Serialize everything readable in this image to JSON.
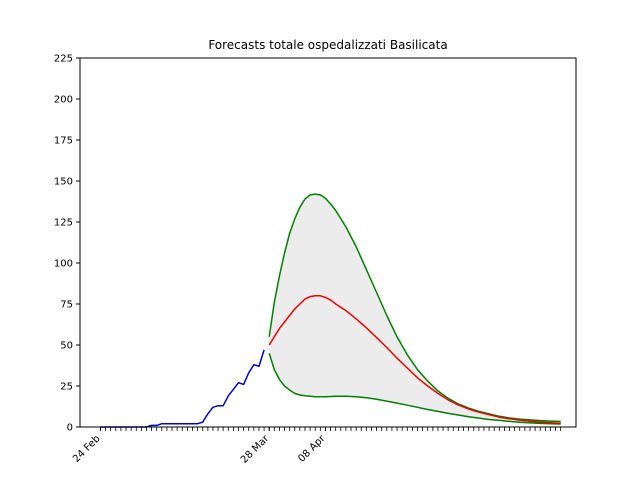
{
  "chart_data": {
    "type": "line",
    "title": "Forecasts totale ospedalizzati Basilicata",
    "xlabel": "",
    "ylabel": "",
    "x_unit": "date",
    "year": 2020,
    "xlim": [
      "2020-02-20",
      "2020-05-27"
    ],
    "ylim": [
      0,
      225
    ],
    "yticks": [
      0,
      25,
      50,
      75,
      100,
      125,
      150,
      175,
      200,
      225
    ],
    "xticks": [
      {
        "date": "2020-02-24",
        "label": "24 Feb"
      },
      {
        "date": "2020-03-28",
        "label": "28 Mar"
      },
      {
        "date": "2020-04-08",
        "label": "08 Apr"
      }
    ],
    "grid": false,
    "legend": "none",
    "colors": {
      "observed": "#0000cc",
      "forecast": "#ee0000",
      "bounds": "#008000",
      "band": "#ececec",
      "frame": "#000000"
    },
    "series": [
      {
        "role": "observed",
        "x": [
          "2020-02-24",
          "2020-02-25",
          "2020-02-26",
          "2020-02-27",
          "2020-02-28",
          "2020-02-29",
          "2020-03-01",
          "2020-03-02",
          "2020-03-03",
          "2020-03-04",
          "2020-03-05",
          "2020-03-06",
          "2020-03-07",
          "2020-03-08",
          "2020-03-09",
          "2020-03-10",
          "2020-03-11",
          "2020-03-12",
          "2020-03-13",
          "2020-03-14",
          "2020-03-15",
          "2020-03-16",
          "2020-03-17",
          "2020-03-18",
          "2020-03-19",
          "2020-03-20",
          "2020-03-21",
          "2020-03-22",
          "2020-03-23",
          "2020-03-24",
          "2020-03-25",
          "2020-03-26",
          "2020-03-27"
        ],
        "y": [
          0,
          0,
          0,
          0,
          0,
          0,
          0,
          0,
          0,
          0,
          1,
          1,
          2,
          2,
          2,
          2,
          2,
          2,
          2,
          2,
          3,
          8,
          12,
          13,
          13,
          19,
          23,
          27,
          26,
          33,
          38,
          37,
          47
        ]
      },
      {
        "role": "forecast",
        "x": [
          "2020-03-28",
          "2020-03-29",
          "2020-03-30",
          "2020-03-31",
          "2020-04-01",
          "2020-04-02",
          "2020-04-03",
          "2020-04-04",
          "2020-04-05",
          "2020-04-06",
          "2020-04-07",
          "2020-04-08",
          "2020-04-09",
          "2020-04-10",
          "2020-04-12",
          "2020-04-14",
          "2020-04-16",
          "2020-04-18",
          "2020-04-20",
          "2020-04-22",
          "2020-04-24",
          "2020-04-26",
          "2020-04-28",
          "2020-04-30",
          "2020-05-02",
          "2020-05-04",
          "2020-05-06",
          "2020-05-08",
          "2020-05-10",
          "2020-05-12",
          "2020-05-14",
          "2020-05-16",
          "2020-05-18",
          "2020-05-20",
          "2020-05-22",
          "2020-05-24"
        ],
        "y": [
          50,
          55,
          60,
          64,
          68,
          72,
          75,
          78,
          79.5,
          80,
          80,
          79,
          77.5,
          75,
          71,
          66,
          60.5,
          54.5,
          48.5,
          42,
          36,
          30,
          25,
          20.5,
          16.5,
          13.5,
          11,
          9,
          7.5,
          6,
          5,
          4.2,
          3.5,
          3,
          2.6,
          2.3
        ]
      },
      {
        "role": "upper",
        "x": [
          "2020-03-28",
          "2020-03-29",
          "2020-03-30",
          "2020-03-31",
          "2020-04-01",
          "2020-04-02",
          "2020-04-03",
          "2020-04-04",
          "2020-04-05",
          "2020-04-06",
          "2020-04-07",
          "2020-04-08",
          "2020-04-09",
          "2020-04-10",
          "2020-04-12",
          "2020-04-14",
          "2020-04-16",
          "2020-04-18",
          "2020-04-20",
          "2020-04-22",
          "2020-04-24",
          "2020-04-26",
          "2020-04-28",
          "2020-04-30",
          "2020-05-02",
          "2020-05-04",
          "2020-05-06",
          "2020-05-08",
          "2020-05-10",
          "2020-05-12",
          "2020-05-14",
          "2020-05-16",
          "2020-05-18",
          "2020-05-20",
          "2020-05-22",
          "2020-05-24"
        ],
        "y": [
          55,
          76,
          92,
          106,
          118,
          127,
          134,
          139,
          141.5,
          142,
          141.5,
          139.5,
          136,
          132,
          122,
          110,
          96,
          82,
          68,
          55,
          44,
          35,
          28,
          22,
          17.5,
          14,
          11.5,
          9.5,
          8,
          6.5,
          5.5,
          4.8,
          4.3,
          3.9,
          3.6,
          3.4
        ]
      },
      {
        "role": "lower",
        "x": [
          "2020-03-28",
          "2020-03-29",
          "2020-03-30",
          "2020-03-31",
          "2020-04-01",
          "2020-04-02",
          "2020-04-03",
          "2020-04-04",
          "2020-04-05",
          "2020-04-06",
          "2020-04-07",
          "2020-04-08",
          "2020-04-09",
          "2020-04-10",
          "2020-04-12",
          "2020-04-14",
          "2020-04-16",
          "2020-04-18",
          "2020-04-20",
          "2020-04-22",
          "2020-04-24",
          "2020-04-26",
          "2020-04-28",
          "2020-04-30",
          "2020-05-02",
          "2020-05-04",
          "2020-05-06",
          "2020-05-08",
          "2020-05-10",
          "2020-05-12",
          "2020-05-14",
          "2020-05-16",
          "2020-05-18",
          "2020-05-20",
          "2020-05-22",
          "2020-05-24"
        ],
        "y": [
          45,
          35,
          29,
          25,
          22.5,
          20.5,
          19.5,
          19,
          18.7,
          18.5,
          18.5,
          18.5,
          18.6,
          18.7,
          18.7,
          18.4,
          17.8,
          16.9,
          15.8,
          14.6,
          13.3,
          12,
          10.7,
          9.5,
          8.3,
          7.3,
          6.3,
          5.4,
          4.6,
          4,
          3.4,
          2.9,
          2.5,
          2.2,
          2,
          1.8
        ]
      }
    ]
  }
}
